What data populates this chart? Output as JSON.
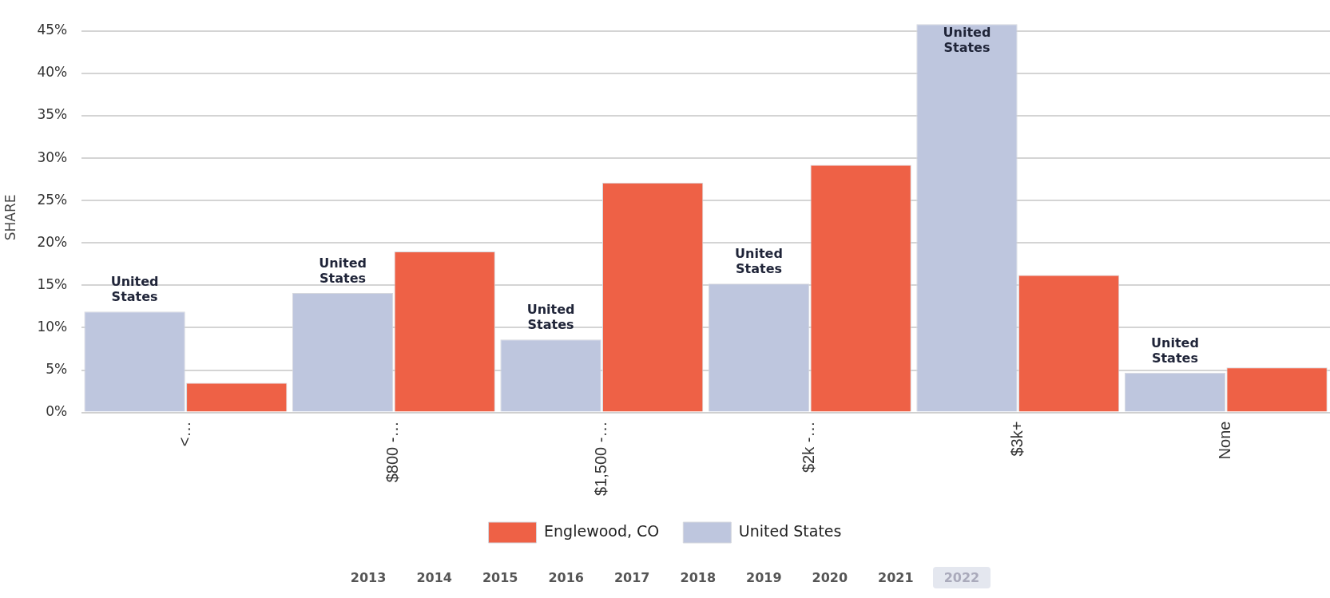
{
  "chart_data": {
    "type": "bar",
    "ylabel": "SHARE",
    "categories": [
      "<…",
      "$800 -…",
      "$1,500 -…",
      "$2k -…",
      "$3k+",
      "None"
    ],
    "series": [
      {
        "name": "United States",
        "color": "#bec6de",
        "values": [
          11.9,
          14.1,
          8.6,
          15.2,
          45.8,
          4.7
        ],
        "value_labels": [
          "United States",
          "United States",
          "United States",
          "United States",
          "United States",
          "United States"
        ]
      },
      {
        "name": "Englewood, CO",
        "color": "#ee6146",
        "values": [
          3.5,
          19.0,
          27.1,
          29.2,
          16.2,
          5.3
        ]
      }
    ],
    "ylim": [
      0,
      46
    ],
    "yticks": [
      {
        "value": 0,
        "label": "0%"
      },
      {
        "value": 5,
        "label": "5%"
      },
      {
        "value": 10,
        "label": "10%"
      },
      {
        "value": 15,
        "label": "15%"
      },
      {
        "value": 20,
        "label": "20%"
      },
      {
        "value": 25,
        "label": "25%"
      },
      {
        "value": 30,
        "label": "30%"
      },
      {
        "value": 35,
        "label": "35%"
      },
      {
        "value": 40,
        "label": "40%"
      },
      {
        "value": 45,
        "label": "45%"
      }
    ],
    "grid": "y",
    "legend": "bottom",
    "annotations": [
      "2013",
      "2014",
      "2015",
      "2016",
      "2017",
      "2018",
      "2019",
      "2020",
      "2021",
      "2022"
    ]
  }
}
